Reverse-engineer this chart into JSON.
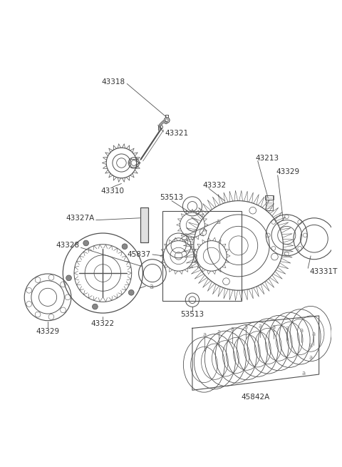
{
  "bg_color": "#ffffff",
  "line_color": "#505050",
  "label_color": "#333333",
  "fig_width": 4.8,
  "fig_height": 6.55,
  "dpi": 100,
  "xlim": [
    0,
    480
  ],
  "ylim": [
    0,
    655
  ]
}
